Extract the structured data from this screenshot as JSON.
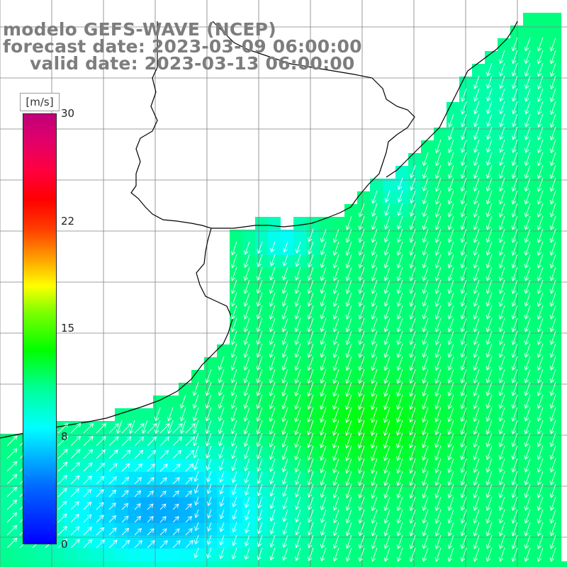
{
  "title": {
    "line1": "modelo GEFS-WAVE (NCEP)",
    "line2": "forecast date: 2023-03-09 06:00:00",
    "line3": "valid date: 2023-03-13 06:00:00"
  },
  "colorbar": {
    "unit": "[m/s]",
    "ticks": [
      "30",
      "22",
      "15",
      "8",
      "0"
    ],
    "ticks_values": [
      30,
      22,
      15,
      8,
      0
    ],
    "min": 0,
    "max": 30
  },
  "colors": {
    "land": "#ffffff",
    "grid": "#808080",
    "coast": "#000000",
    "arrow": "#ffffff",
    "low_wind": "#0000ff",
    "mid_wind": "#00ffff",
    "high_wind": "#00ff00",
    "title_text": "#7d7d7d"
  }
}
